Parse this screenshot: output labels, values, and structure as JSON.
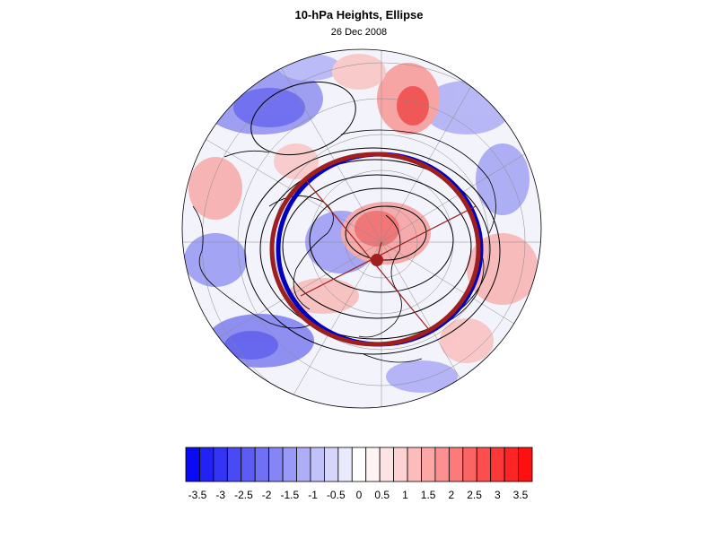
{
  "title": "10-hPa Heights, Ellipse",
  "subtitle": "26 Dec 2008",
  "colorbar": {
    "tick_labels": [
      "-3.5",
      "-3",
      "-2.5",
      "-2",
      "-1.5",
      "-1",
      "-0.5",
      "0",
      "0.5",
      "1",
      "1.5",
      "2",
      "2.5",
      "3",
      "3.5"
    ],
    "colors": [
      "#0a0af5",
      "#2222f5",
      "#3434f5",
      "#4a4af5",
      "#5c5cf5",
      "#7070f5",
      "#8585f5",
      "#9999f7",
      "#aeaef8",
      "#c2c2fa",
      "#d6d6fb",
      "#eaeafd",
      "#ffffff",
      "#fff3f3",
      "#fde4e4",
      "#fcd2d2",
      "#fcbcbc",
      "#fca6a6",
      "#fc9090",
      "#fc7a7a",
      "#fc6464",
      "#fc4e4e",
      "#fc3838",
      "#fc2424",
      "#fd1010"
    ]
  },
  "map": {
    "projection": "north polar stereographic",
    "field_colors": {
      "negative": "#5a5af0",
      "positive": "#f05050",
      "neutral": "#f4f4fb"
    },
    "overlay_colors": {
      "ellipse_red": "#9f1f1f",
      "ellipse_blue": "#0000c0",
      "contour": "#000000",
      "center_marker": "#a02020"
    }
  }
}
